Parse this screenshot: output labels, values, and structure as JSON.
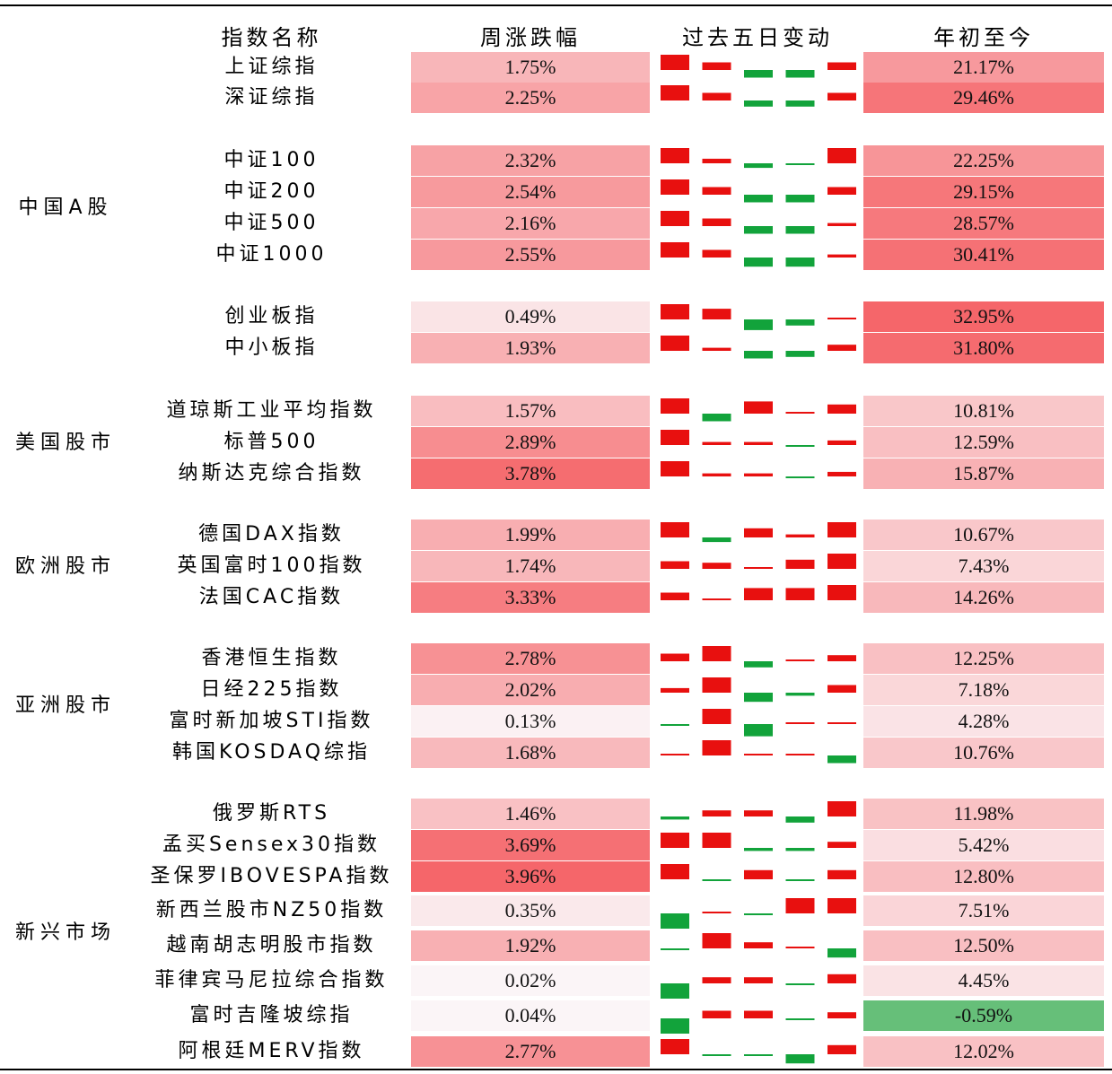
{
  "chart_data": {
    "type": "table",
    "headers": [
      "指数名称",
      "周涨跌幅",
      "过去五日变动",
      "年初至今"
    ],
    "colors": {
      "up_bar": "#e8100f",
      "down_bar": "#12a33b",
      "heat_max": "#f5666a",
      "heat_min": "#fbf6f8",
      "negative_cell": "#66bf79"
    },
    "rows": [
      {
        "group": "",
        "name": "上证综指",
        "week": "1.75%",
        "week_value": 1.75,
        "ytd": "21.17%",
        "ytd_value": 21.17,
        "five_day": [
          1,
          0.5,
          -0.5,
          -0.5,
          0.5
        ]
      },
      {
        "group": "",
        "name": "深证综指",
        "week": "2.25%",
        "week_value": 2.25,
        "ytd": "29.46%",
        "ytd_value": 29.46,
        "five_day": [
          1,
          0.5,
          -0.4,
          -0.4,
          0.5
        ]
      },
      {
        "group": "",
        "name": "中证100",
        "week": "2.32%",
        "week_value": 2.32,
        "ytd": "22.25%",
        "ytd_value": 22.25,
        "five_day": [
          1,
          0.3,
          -0.3,
          -0.1,
          1
        ]
      },
      {
        "group": "中国A股",
        "name": "中证200",
        "week": "2.54%",
        "week_value": 2.54,
        "ytd": "29.15%",
        "ytd_value": 29.15,
        "five_day": [
          1,
          0.5,
          -0.5,
          -0.5,
          0.5
        ]
      },
      {
        "group": "",
        "name": "中证500",
        "week": "2.16%",
        "week_value": 2.16,
        "ytd": "28.57%",
        "ytd_value": 28.57,
        "five_day": [
          1,
          0.5,
          -0.5,
          -0.5,
          0.2
        ]
      },
      {
        "group": "",
        "name": "中证1000",
        "week": "2.55%",
        "week_value": 2.55,
        "ytd": "30.41%",
        "ytd_value": 30.41,
        "five_day": [
          1,
          0.5,
          -0.6,
          -0.6,
          0.2
        ]
      },
      {
        "group": "",
        "name": "创业板指",
        "week": "0.49%",
        "week_value": 0.49,
        "ytd": "32.95%",
        "ytd_value": 32.95,
        "five_day": [
          1,
          0.7,
          -0.7,
          -0.4,
          0.1
        ]
      },
      {
        "group": "",
        "name": "中小板指",
        "week": "1.93%",
        "week_value": 1.93,
        "ytd": "31.80%",
        "ytd_value": 31.8,
        "five_day": [
          1,
          0.2,
          -0.5,
          -0.4,
          0.4
        ]
      },
      {
        "group": "",
        "name": "道琼斯工业平均指数",
        "week": "1.57%",
        "week_value": 1.57,
        "ytd": "10.81%",
        "ytd_value": 10.81,
        "five_day": [
          1,
          -0.5,
          0.8,
          0.1,
          0.6
        ]
      },
      {
        "group": "美国股市",
        "name": "标普500",
        "week": "2.89%",
        "week_value": 2.89,
        "ytd": "12.59%",
        "ytd_value": 12.59,
        "five_day": [
          1,
          0.2,
          0.2,
          -0.1,
          0.3
        ]
      },
      {
        "group": "",
        "name": "纳斯达克综合指数",
        "week": "3.78%",
        "week_value": 3.78,
        "ytd": "15.87%",
        "ytd_value": 15.87,
        "five_day": [
          1,
          0.2,
          0.2,
          -0.1,
          0.3
        ]
      },
      {
        "group": "",
        "name": "德国DAX指数",
        "week": "1.99%",
        "week_value": 1.99,
        "ytd": "10.67%",
        "ytd_value": 10.67,
        "five_day": [
          1,
          -0.3,
          0.6,
          0.2,
          1
        ]
      },
      {
        "group": "欧洲股市",
        "name": "英国富时100指数",
        "week": "1.74%",
        "week_value": 1.74,
        "ytd": "7.43%",
        "ytd_value": 7.43,
        "five_day": [
          0.5,
          0.4,
          0.1,
          0.6,
          1
        ]
      },
      {
        "group": "",
        "name": "法国CAC指数",
        "week": "3.33%",
        "week_value": 3.33,
        "ytd": "14.26%",
        "ytd_value": 14.26,
        "five_day": [
          0.5,
          0.1,
          0.8,
          0.8,
          1
        ]
      },
      {
        "group": "",
        "name": "香港恒生指数",
        "week": "2.78%",
        "week_value": 2.78,
        "ytd": "12.25%",
        "ytd_value": 12.25,
        "five_day": [
          0.5,
          1,
          -0.4,
          0.1,
          0.4
        ]
      },
      {
        "group": "亚洲股市",
        "name": "日经225指数",
        "week": "2.02%",
        "week_value": 2.02,
        "ytd": "7.18%",
        "ytd_value": 7.18,
        "five_day": [
          0.3,
          1,
          -0.6,
          -0.2,
          0.5
        ]
      },
      {
        "group": "",
        "name": "富时新加坡STI指数",
        "week": "0.13%",
        "week_value": 0.13,
        "ytd": "4.28%",
        "ytd_value": 4.28,
        "five_day": [
          -0.1,
          1,
          -0.8,
          0.1,
          0.1
        ]
      },
      {
        "group": "",
        "name": "韩国KOSDAQ综指",
        "week": "1.68%",
        "week_value": 1.68,
        "ytd": "10.76%",
        "ytd_value": 10.76,
        "five_day": [
          0.1,
          1,
          0.1,
          0.1,
          -0.5
        ]
      },
      {
        "group": "",
        "name": "俄罗斯RTS",
        "week": "1.46%",
        "week_value": 1.46,
        "ytd": "11.98%",
        "ytd_value": 11.98,
        "five_day": [
          -0.2,
          0.4,
          0.4,
          -0.4,
          1
        ]
      },
      {
        "group": "",
        "name": "孟买Sensex30指数",
        "week": "3.69%",
        "week_value": 3.69,
        "ytd": "5.42%",
        "ytd_value": 5.42,
        "five_day": [
          1,
          1,
          -0.2,
          -0.2,
          0.4
        ]
      },
      {
        "group": "",
        "name": "圣保罗IBOVESPA指数",
        "week": "3.96%",
        "week_value": 3.96,
        "ytd": "12.80%",
        "ytd_value": 12.8,
        "five_day": [
          1,
          -0.1,
          0.6,
          -0.1,
          0.6
        ]
      },
      {
        "group": "新兴市场",
        "name": "新西兰股市NZ50指数",
        "week": "0.35%",
        "week_value": 0.35,
        "ytd": "7.51%",
        "ytd_value": 7.51,
        "five_day": [
          -1,
          0.1,
          -0.1,
          1,
          1
        ]
      },
      {
        "group": "",
        "name": "越南胡志明股市指数",
        "week": "1.92%",
        "week_value": 1.92,
        "ytd": "12.50%",
        "ytd_value": 12.5,
        "five_day": [
          -0.1,
          1,
          0.4,
          0.1,
          -0.6
        ]
      },
      {
        "group": "",
        "name": "菲律宾马尼拉综合指数",
        "week": "0.02%",
        "week_value": 0.02,
        "ytd": "4.45%",
        "ytd_value": 4.45,
        "five_day": [
          -1,
          0.4,
          0.4,
          -0.1,
          0.6
        ]
      },
      {
        "group": "",
        "name": "富时吉隆坡综指",
        "week": "0.04%",
        "week_value": 0.04,
        "ytd": "-0.59%",
        "ytd_value": -0.59,
        "five_day": [
          -1,
          0.5,
          0.5,
          -0.1,
          0.4
        ]
      },
      {
        "group": "",
        "name": "阿根廷MERV指数",
        "week": "2.77%",
        "week_value": 2.77,
        "ytd": "12.02%",
        "ytd_value": 12.02,
        "five_day": [
          1,
          -0.1,
          -0.1,
          -0.6,
          0.6
        ]
      }
    ]
  }
}
